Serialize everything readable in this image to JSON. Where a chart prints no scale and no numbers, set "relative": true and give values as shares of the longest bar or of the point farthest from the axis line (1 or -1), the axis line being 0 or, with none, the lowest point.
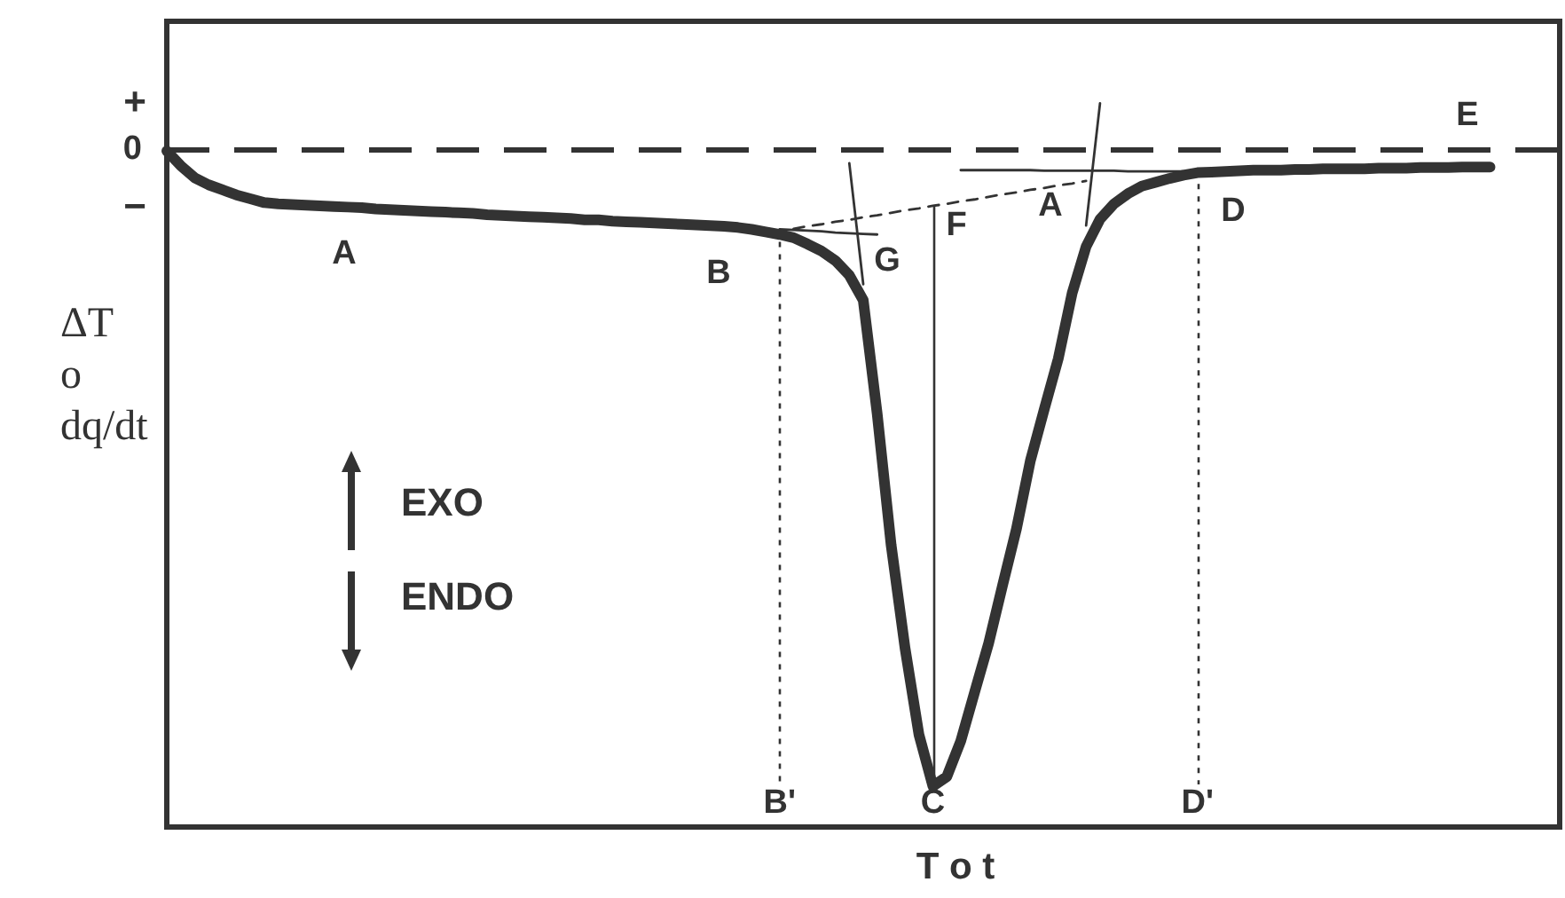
{
  "chart_data": {
    "type": "line",
    "relative": true,
    "xlabel": "T o t",
    "ylabel": "ΔT\no\ndq/dt",
    "marker": "none",
    "tick_labels": "x",
    "categories": [
      null,
      null,
      null,
      null,
      null,
      null,
      null,
      null,
      null,
      null,
      null,
      null,
      null,
      null,
      null,
      null,
      null,
      null,
      null,
      null,
      null,
      null,
      null,
      null,
      null,
      null,
      null,
      null,
      null,
      null,
      null,
      null,
      null,
      null,
      null,
      null,
      null,
      null,
      null,
      null,
      null,
      null,
      null,
      null,
      "B'",
      null,
      null,
      null,
      null,
      null,
      null,
      null,
      null,
      null,
      null,
      "C",
      null,
      null,
      null,
      null,
      null,
      null,
      null,
      null,
      null,
      null,
      null,
      null,
      null,
      null,
      null,
      null,
      null,
      null,
      "D'",
      null,
      null,
      null,
      null,
      null,
      null,
      null,
      null,
      null,
      null,
      null,
      null,
      null,
      null,
      null,
      null,
      null,
      null,
      null,
      null,
      null,
      null,
      null,
      null,
      null,
      null
    ],
    "series": [
      {
        "color": "#333333",
        "values": [
          -0.003,
          -0.026,
          -0.045,
          -0.056,
          -0.064,
          -0.072,
          -0.078,
          -0.084,
          -0.086,
          -0.087,
          -0.088,
          -0.089,
          -0.09,
          -0.091,
          -0.092,
          -0.094,
          -0.095,
          -0.096,
          -0.097,
          -0.098,
          -0.099,
          -0.1,
          -0.101,
          -0.103,
          -0.104,
          -0.105,
          -0.106,
          -0.107,
          -0.108,
          -0.109,
          -0.111,
          -0.111,
          -0.113,
          -0.114,
          -0.115,
          -0.116,
          -0.117,
          -0.118,
          -0.119,
          -0.12,
          -0.121,
          -0.123,
          -0.126,
          -0.13,
          -0.134,
          -0.139,
          -0.149,
          -0.16,
          -0.175,
          -0.198,
          -0.237,
          -0.415,
          -0.621,
          -0.783,
          -0.919,
          -1,
          -0.985,
          -0.929,
          -0.852,
          -0.776,
          -0.685,
          -0.596,
          -0.489,
          -0.408,
          -0.329,
          -0.226,
          -0.153,
          -0.11,
          -0.086,
          -0.07,
          -0.058,
          -0.052,
          -0.046,
          -0.041,
          -0.037,
          -0.036,
          -0.035,
          -0.034,
          -0.033,
          -0.033,
          -0.033,
          -0.032,
          -0.032,
          -0.031,
          -0.031,
          -0.031,
          -0.031,
          -0.03,
          -0.03,
          -0.03,
          -0.029,
          -0.029,
          -0.029,
          -0.028,
          -0.028,
          -0.028,
          null,
          null,
          null,
          null,
          null
        ]
      },
      {
        "color": "#333333",
        "values": [
          null,
          null,
          null,
          null,
          null,
          null,
          null,
          null,
          null,
          null,
          null,
          null,
          null,
          null,
          null,
          null,
          null,
          null,
          null,
          null,
          null,
          null,
          null,
          null,
          null,
          null,
          null,
          null,
          null,
          null,
          null,
          null,
          null,
          null,
          null,
          null,
          null,
          null,
          null,
          null,
          null,
          null,
          null,
          null,
          -0.126,
          -0.127,
          -0.128,
          -0.129,
          -0.131,
          -0.132,
          -0.133,
          -0.134,
          null,
          null,
          null,
          null,
          null,
          null,
          null,
          null,
          null,
          null,
          null,
          null,
          null,
          null,
          null,
          null,
          null,
          null,
          null,
          null,
          null,
          null,
          null,
          null,
          null,
          null,
          null,
          null,
          null,
          null,
          null,
          null,
          null,
          null,
          null,
          null,
          null,
          null,
          null,
          null,
          null,
          null,
          null,
          null,
          null,
          null,
          null,
          null,
          null
        ]
      },
      {
        "color": "#333333",
        "line_style": "dashed",
        "values": [
          null,
          null,
          null,
          null,
          null,
          null,
          null,
          null,
          null,
          null,
          null,
          null,
          null,
          null,
          null,
          null,
          null,
          null,
          null,
          null,
          null,
          null,
          null,
          null,
          null,
          null,
          null,
          null,
          null,
          null,
          null,
          null,
          null,
          null,
          null,
          null,
          null,
          null,
          null,
          null,
          null,
          null,
          null,
          null,
          null,
          -0.125,
          -0.121,
          -0.118,
          -0.114,
          -0.111,
          -0.107,
          -0.104,
          -0.1,
          -0.096,
          -0.093,
          -0.089,
          -0.086,
          -0.082,
          -0.079,
          -0.075,
          -0.071,
          -0.068,
          -0.064,
          -0.061,
          -0.057,
          -0.054,
          -0.05,
          null,
          null,
          null,
          null,
          null,
          null,
          null,
          null,
          null,
          null,
          null,
          null,
          null,
          null,
          null,
          null,
          null,
          null,
          null,
          null,
          null,
          null,
          null,
          null,
          null,
          null,
          null,
          null,
          null,
          null,
          null,
          null,
          null,
          null
        ]
      },
      {
        "color": "#333333",
        "values": [
          null,
          null,
          null,
          null,
          null,
          null,
          null,
          null,
          null,
          null,
          null,
          null,
          null,
          null,
          null,
          null,
          null,
          null,
          null,
          null,
          null,
          null,
          null,
          null,
          null,
          null,
          null,
          null,
          null,
          null,
          null,
          null,
          null,
          null,
          null,
          null,
          null,
          null,
          null,
          null,
          null,
          null,
          null,
          null,
          null,
          null,
          null,
          null,
          null,
          null,
          null,
          null,
          null,
          null,
          null,
          null,
          null,
          -0.033,
          -0.033,
          -0.033,
          -0.033,
          -0.033,
          -0.033,
          -0.034,
          -0.034,
          -0.034,
          -0.034,
          -0.034,
          -0.034,
          -0.035,
          -0.035,
          -0.035,
          -0.035,
          -0.035,
          -0.035,
          null,
          null,
          null,
          null,
          null,
          null,
          null,
          null,
          null,
          null,
          null,
          null,
          null,
          null,
          null,
          null,
          null,
          null,
          null,
          null,
          null,
          null,
          null,
          null,
          null,
          null
        ]
      },
      {
        "color": "#333333",
        "values": [
          null,
          null,
          null,
          null,
          null,
          null,
          null,
          null,
          null,
          null,
          null,
          null,
          null,
          null,
          null,
          null,
          null,
          null,
          null,
          null,
          null,
          null,
          null,
          null,
          null,
          null,
          null,
          null,
          null,
          null,
          null,
          null,
          null,
          null,
          null,
          null,
          null,
          null,
          null,
          null,
          null,
          null,
          null,
          null,
          null,
          null,
          null,
          null,
          null,
          -0.022,
          -0.212,
          null,
          null,
          null,
          null,
          null,
          null,
          null,
          null,
          null,
          null,
          null,
          null,
          null,
          null,
          null,
          null,
          null,
          null,
          null,
          null,
          null,
          null,
          null,
          null,
          null,
          null,
          null,
          null,
          null,
          null,
          null,
          null,
          null,
          null,
          null,
          null,
          null,
          null,
          null,
          null,
          null,
          null,
          null,
          null,
          null,
          null,
          null,
          null,
          null,
          null
        ]
      },
      {
        "color": "#333333",
        "values": [
          null,
          null,
          null,
          null,
          null,
          null,
          null,
          null,
          null,
          null,
          null,
          null,
          null,
          null,
          null,
          null,
          null,
          null,
          null,
          null,
          null,
          null,
          null,
          null,
          null,
          null,
          null,
          null,
          null,
          null,
          null,
          null,
          null,
          null,
          null,
          null,
          null,
          null,
          null,
          null,
          null,
          null,
          null,
          null,
          null,
          null,
          null,
          null,
          null,
          null,
          null,
          null,
          null,
          null,
          null,
          null,
          null,
          null,
          null,
          null,
          null,
          null,
          null,
          null,
          null,
          null,
          -0.12,
          0.072,
          null,
          null,
          null,
          null,
          null,
          null,
          null,
          null,
          null,
          null,
          null,
          null,
          null,
          null,
          null,
          null,
          null,
          null,
          null,
          null,
          null,
          null,
          null,
          null,
          null,
          null,
          null,
          null,
          null,
          null,
          null,
          null,
          null
        ]
      }
    ],
    "ref_lines": [
      {
        "axis": "y",
        "value": 0,
        "label": "0",
        "line_style": "dashed"
      },
      {
        "axis": "x",
        "value": "B'",
        "line_style": "dotted"
      },
      {
        "axis": "x",
        "value": "C",
        "line_style": "solid"
      },
      {
        "axis": "x",
        "value": "D'",
        "line_style": "dotted"
      }
    ],
    "annotations": [
      "+",
      "−",
      "EXO",
      "ENDO",
      "A",
      "B",
      "G",
      "F",
      "A",
      "D",
      "E"
    ]
  }
}
